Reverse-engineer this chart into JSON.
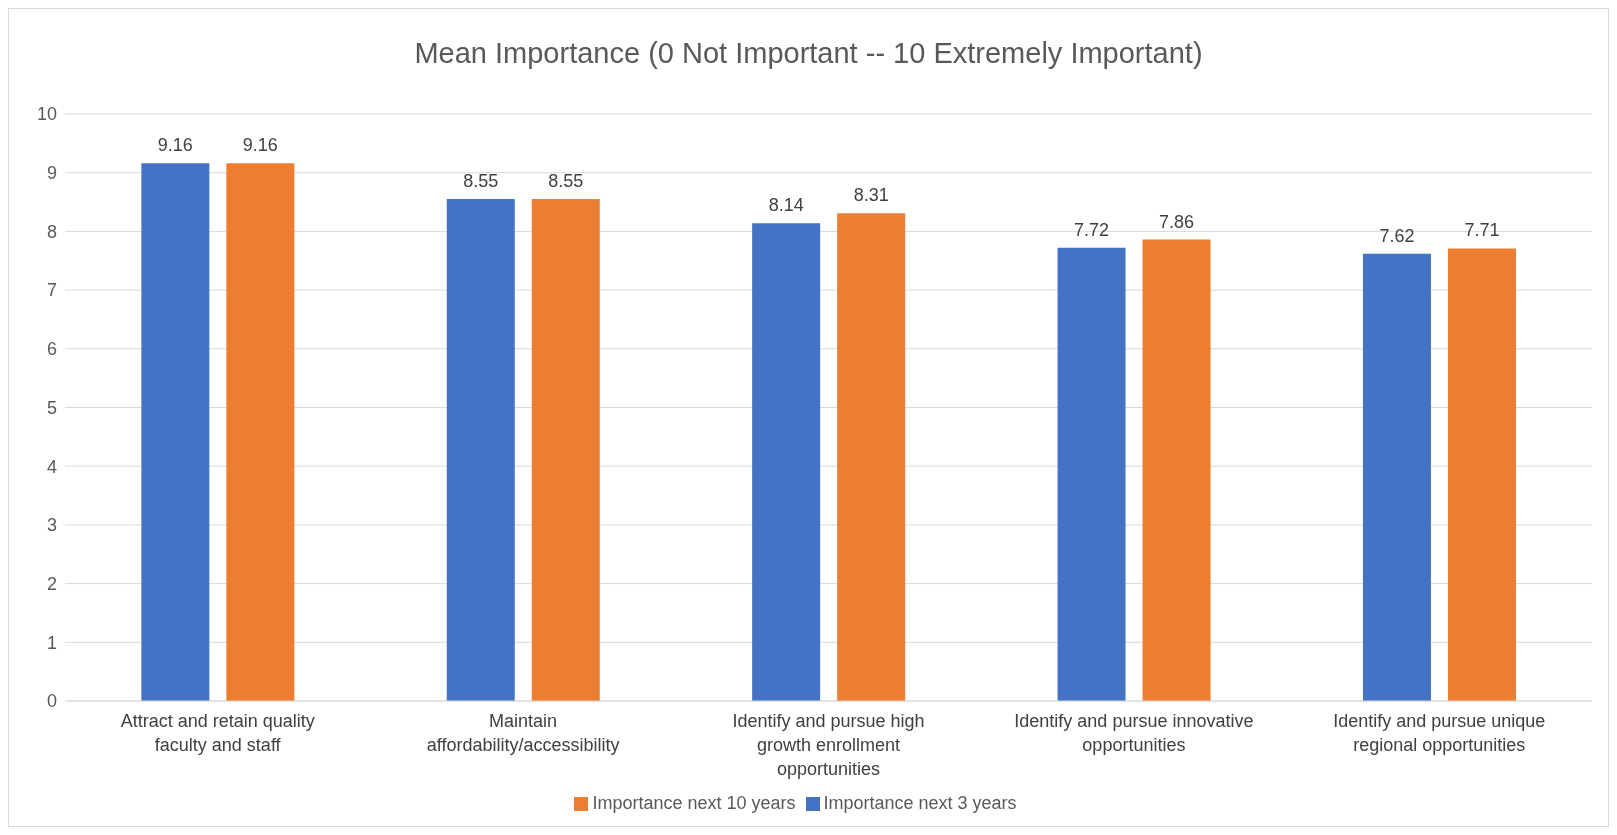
{
  "chart_data": {
    "type": "bar",
    "title": "Mean Importance (0 Not Important -- 10 Extremely Important)",
    "categories": [
      "Attract and retain quality faculty and staff",
      "Maintain affordability/accessibility",
      "Identify and pursue high growth enrollment opportunities",
      "Identify and pursue innovative opportunities",
      "Identify and pursue unique regional opportunities"
    ],
    "series": [
      {
        "name": "Importance next 3 years",
        "color": "#4472c4",
        "values": [
          9.16,
          8.55,
          8.14,
          7.72,
          7.62
        ]
      },
      {
        "name": "Importance next 10 years",
        "color": "#ed7d31",
        "values": [
          9.16,
          8.55,
          8.31,
          7.86,
          7.71
        ]
      }
    ],
    "ylim": [
      0,
      10
    ],
    "yticks": [
      0,
      1,
      2,
      3,
      4,
      5,
      6,
      7,
      8,
      9,
      10
    ],
    "grid": "y",
    "legend": "bottom",
    "data_labels": true
  }
}
